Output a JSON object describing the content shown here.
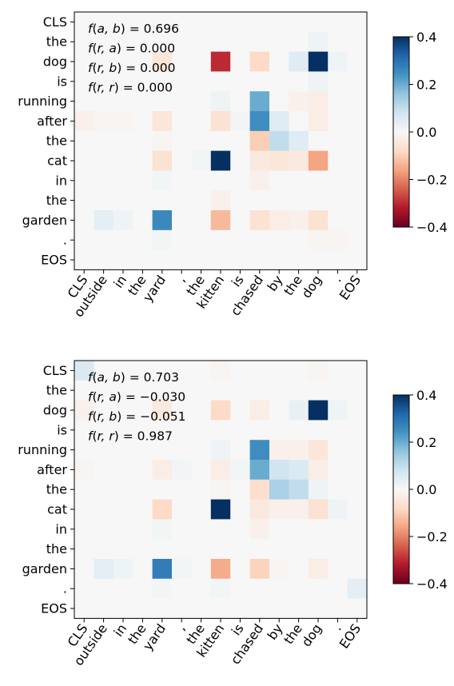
{
  "chart_data": [
    {
      "type": "heatmap",
      "row_labels": [
        "CLS",
        "the",
        "dog",
        "is",
        "running",
        "after",
        "the",
        "cat",
        "in",
        "the",
        "garden",
        ".",
        "EOS"
      ],
      "col_labels": [
        "CLS",
        "outside",
        "in",
        "the",
        "yard",
        ",",
        "the",
        "kitten",
        "is",
        "chased",
        "by",
        "the",
        "dog",
        ".",
        "EOS"
      ],
      "colormap": "RdBu",
      "vmin": -0.4,
      "vmax": 0.4,
      "colorbar_ticks": [
        "0.4",
        "0.2",
        "0.0",
        "−0.2",
        "−0.4"
      ],
      "colorbar_tick_values": [
        0.4,
        0.2,
        0.0,
        -0.2,
        -0.4
      ],
      "annotations": [
        {
          "fn": "f",
          "args": "a, b",
          "value": "= 0.696"
        },
        {
          "fn": "f",
          "args": "r, a",
          "value": "= 0.000"
        },
        {
          "fn": "f",
          "args": "r, b",
          "value": "= 0.000"
        },
        {
          "fn": "f",
          "args": "r, r",
          "value": "= 0.000"
        }
      ],
      "values": [
        [
          0,
          0,
          0,
          0,
          0,
          0,
          0,
          0,
          0,
          0,
          0,
          0,
          0,
          0,
          0
        ],
        [
          0,
          0,
          0,
          0,
          0,
          0,
          0,
          0,
          0,
          0,
          0,
          0,
          0.02,
          0,
          0
        ],
        [
          0,
          0,
          0,
          0,
          -0.05,
          0,
          0,
          -0.3,
          0,
          -0.08,
          0,
          0.05,
          0.4,
          0.02,
          0
        ],
        [
          0,
          0,
          0,
          0,
          0,
          0,
          0,
          0,
          0,
          0,
          0,
          0,
          0.02,
          0,
          0
        ],
        [
          0,
          0,
          0,
          0,
          0,
          0,
          0,
          0.02,
          0,
          0.2,
          0,
          -0.02,
          -0.03,
          0,
          0
        ],
        [
          -0.02,
          -0.01,
          -0.01,
          0,
          -0.05,
          0,
          0,
          -0.06,
          0.01,
          0.25,
          0.05,
          0,
          -0.03,
          0,
          0
        ],
        [
          0,
          0,
          0,
          0,
          -0.01,
          0,
          0,
          0,
          0,
          -0.1,
          0.1,
          0.05,
          0,
          0,
          0
        ],
        [
          0,
          0,
          0,
          0,
          -0.06,
          0,
          0.01,
          0.4,
          0,
          -0.04,
          -0.05,
          -0.04,
          -0.16,
          0,
          0
        ],
        [
          0,
          0,
          0,
          0,
          0.01,
          0,
          0,
          0,
          0,
          -0.02,
          0,
          0,
          0,
          0,
          0
        ],
        [
          0,
          0,
          0,
          0,
          0,
          0,
          0,
          -0.02,
          0,
          0,
          0,
          0,
          0,
          0,
          0
        ],
        [
          0,
          0.04,
          0.02,
          0,
          0.26,
          0,
          0,
          -0.13,
          0,
          -0.06,
          -0.03,
          -0.02,
          -0.06,
          0,
          0
        ],
        [
          0,
          0,
          0,
          0,
          0.01,
          0,
          0,
          0,
          0,
          0,
          0,
          0,
          -0.01,
          -0.01,
          0
        ],
        [
          0,
          0,
          0,
          0,
          0,
          0,
          0,
          0,
          0,
          0,
          0,
          0,
          0,
          0,
          0
        ]
      ]
    },
    {
      "type": "heatmap",
      "row_labels": [
        "CLS",
        "the",
        "dog",
        "is",
        "running",
        "after",
        "the",
        "cat",
        "in",
        "the",
        "garden",
        ".",
        "EOS"
      ],
      "col_labels": [
        "CLS",
        "outside",
        "in",
        "the",
        "yard",
        ",",
        "the",
        "kitten",
        "is",
        "chased",
        "by",
        "the",
        "dog",
        ".",
        "EOS"
      ],
      "colormap": "RdBu",
      "vmin": -0.4,
      "vmax": 0.4,
      "colorbar_ticks": [
        "0.4",
        "0.2",
        "0.0",
        "−0.2",
        "−0.4"
      ],
      "colorbar_tick_values": [
        0.4,
        0.2,
        0.0,
        -0.2,
        -0.4
      ],
      "annotations": [
        {
          "fn": "f",
          "args": "a, b",
          "value": "= 0.703"
        },
        {
          "fn": "f",
          "args": "r, a",
          "value": "= −0.030"
        },
        {
          "fn": "f",
          "args": "r, b",
          "value": "= −0.051"
        },
        {
          "fn": "f",
          "args": "r, r",
          "value": "= 0.987"
        }
      ],
      "values": [
        [
          0.06,
          0,
          0,
          0,
          0,
          0,
          0,
          -0.01,
          0,
          0,
          0,
          0,
          -0.01,
          0,
          0
        ],
        [
          0,
          0,
          0,
          0,
          0,
          0,
          0,
          0,
          0,
          0,
          0,
          0,
          0,
          0,
          0
        ],
        [
          -0.02,
          0,
          0,
          0,
          -0.04,
          0,
          0,
          -0.08,
          0,
          -0.03,
          0,
          0.03,
          0.4,
          0.02,
          0
        ],
        [
          0,
          0,
          0,
          0,
          0,
          0,
          0,
          0,
          0,
          0,
          0,
          0,
          0,
          0,
          0
        ],
        [
          0,
          0,
          0,
          0,
          0,
          0,
          0,
          0.02,
          0,
          0.25,
          -0.02,
          -0.02,
          -0.05,
          0,
          0
        ],
        [
          -0.01,
          0,
          0,
          0,
          -0.03,
          0.01,
          0,
          -0.03,
          0.01,
          0.2,
          0.08,
          0.06,
          -0.03,
          0,
          0
        ],
        [
          0,
          0,
          0,
          0,
          0,
          0,
          0,
          -0.01,
          0,
          -0.07,
          0.13,
          0.1,
          0.02,
          0,
          0
        ],
        [
          0,
          0,
          0,
          0,
          -0.08,
          0,
          0,
          0.4,
          0,
          -0.04,
          -0.02,
          -0.02,
          -0.06,
          0.02,
          0
        ],
        [
          0,
          0,
          0,
          0,
          0.01,
          0,
          0,
          0,
          0,
          -0.02,
          0,
          0,
          0,
          0,
          0
        ],
        [
          0,
          0,
          0,
          0,
          0,
          0,
          0,
          0,
          0,
          0,
          0,
          0,
          0,
          0,
          0
        ],
        [
          0,
          0.04,
          0.02,
          0,
          0.28,
          0.01,
          0,
          -0.15,
          0,
          -0.09,
          -0.01,
          0,
          -0.03,
          0,
          0
        ],
        [
          0,
          0,
          0,
          0,
          0.01,
          0,
          0,
          0.01,
          0,
          0,
          0,
          0,
          0,
          0,
          0.04
        ],
        [
          0,
          0,
          0,
          0,
          0,
          0,
          0,
          0,
          0,
          0,
          0,
          0,
          0,
          0,
          0
        ]
      ]
    }
  ]
}
